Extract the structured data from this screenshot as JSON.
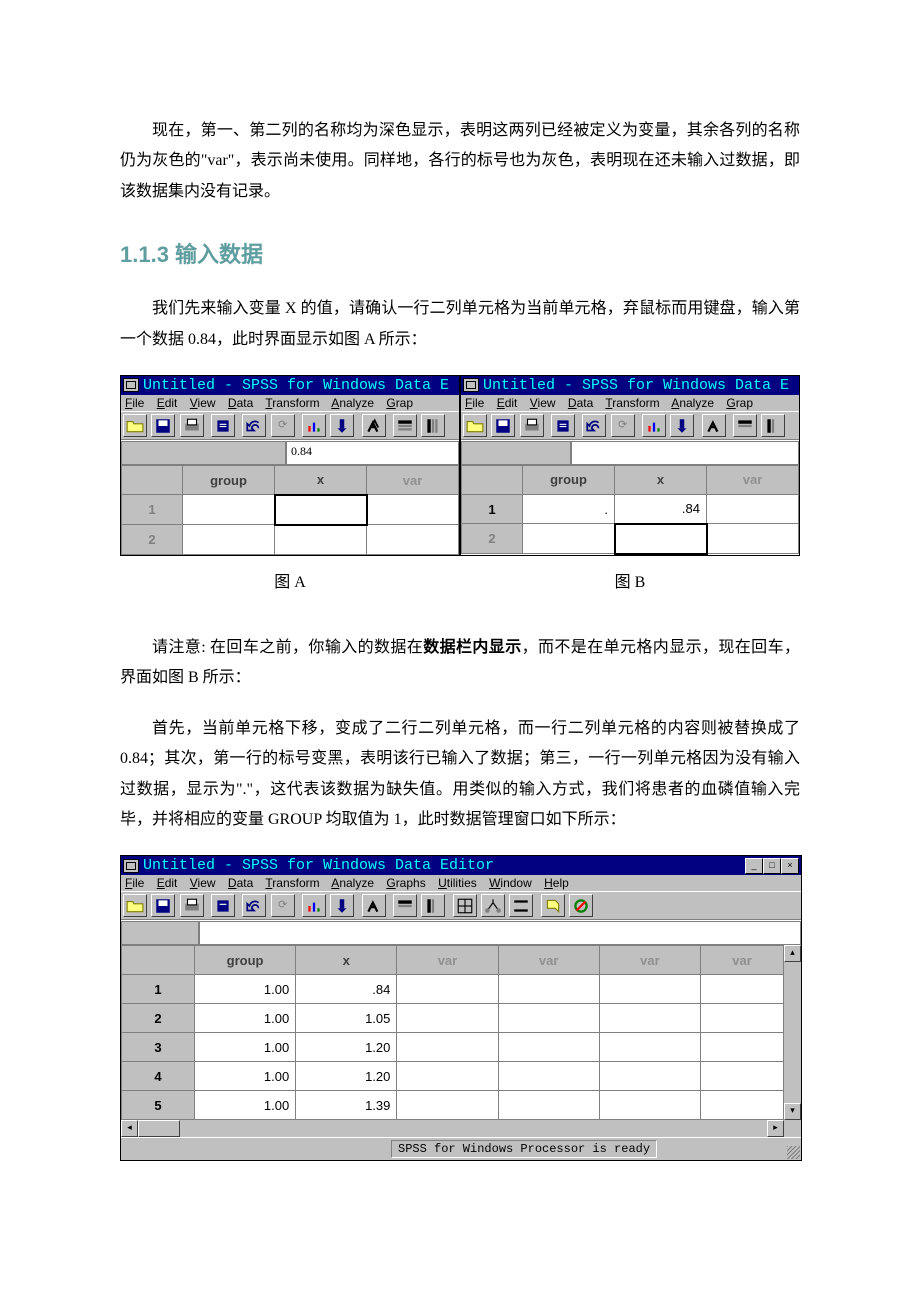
{
  "para1": "现在，第一、第二列的名称均为深色显示，表明这两列已经被定义为变量，其余各列的名称仍为灰色的\"var\"，表示尚未使用。同样地，各行的标号也为灰色，表明现在还未输入过数据，即该数据集内没有记录。",
  "sectionHead": "1.1.3 输入数据",
  "para2": "我们先来输入变量 X 的值，请确认一行二列单元格为当前单元格，弃鼠标而用键盘，输入第一个数据 0.84，此时界面显示如图 A 所示：",
  "captionA": "图 A",
  "captionB": "图 B",
  "para3a": "请注意: 在回车之前，你输入的数据在",
  "para3b": "数据栏内显示",
  "para3c": "，而不是在单元格内显示，现在回车，界面如图 B 所示：",
  "para4": "首先，当前单元格下移，变成了二行二列单元格，而一行二列单元格的内容则被替换成了 0.84；其次，第一行的标号变黑，表明该行已输入了数据；第三，一行一列单元格因为没有输入过数据，显示为\".\"，这代表该数据为缺失值。用类似的输入方式，我们将患者的血磷值输入完毕，并将相应的变量 GROUP 均取值为 1，此时数据管理窗口如下所示：",
  "spss": {
    "titleShort": "Untitled - SPSS for Windows Data E",
    "titleFull": "Untitled - SPSS for Windows Data Editor",
    "menusShort": [
      "File",
      "Edit",
      "View",
      "Data",
      "Transform",
      "Analyze",
      "Grap"
    ],
    "menusFull": [
      "File",
      "Edit",
      "View",
      "Data",
      "Transform",
      "Analyze",
      "Graphs",
      "Utilities",
      "Window",
      "Help"
    ],
    "colGroup": "group",
    "colX": "x",
    "colVar": "var",
    "editA": "0.84",
    "cellB_1_group": ".",
    "cellB_1_x": ".84",
    "status": "SPSS for Windows Processor is ready",
    "bigRows": [
      {
        "n": "1",
        "g": "1.00",
        "x": ".84"
      },
      {
        "n": "2",
        "g": "1.00",
        "x": "1.05"
      },
      {
        "n": "3",
        "g": "1.00",
        "x": "1.20"
      },
      {
        "n": "4",
        "g": "1.00",
        "x": "1.20"
      },
      {
        "n": "5",
        "g": "1.00",
        "x": "1.39"
      }
    ]
  }
}
